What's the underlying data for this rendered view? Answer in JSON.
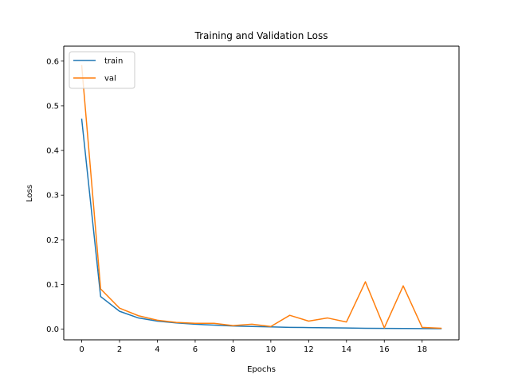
{
  "chart_data": {
    "type": "line",
    "title": "Training and Validation Loss",
    "xlabel": "Epochs",
    "ylabel": "Loss",
    "xlim": [
      -0.95,
      19.95
    ],
    "ylim": [
      -0.0239,
      0.6335
    ],
    "xticks": [
      0,
      2,
      4,
      6,
      8,
      10,
      12,
      14,
      16,
      18
    ],
    "yticks": [
      0.0,
      0.1,
      0.2,
      0.3,
      0.4,
      0.5,
      0.6
    ],
    "ytick_labels": [
      "0.0",
      "0.1",
      "0.2",
      "0.3",
      "0.4",
      "0.5",
      "0.6"
    ],
    "legend_position": "upper-left",
    "x": [
      0,
      1,
      2,
      3,
      4,
      5,
      6,
      7,
      8,
      9,
      10,
      11,
      12,
      13,
      14,
      15,
      16,
      17,
      18,
      19
    ],
    "series": [
      {
        "name": "train",
        "color": "#1f77b4",
        "values": [
          0.47,
          0.073,
          0.04,
          0.025,
          0.018,
          0.014,
          0.011,
          0.009,
          0.007,
          0.006,
          0.005,
          0.004,
          0.0035,
          0.003,
          0.0025,
          0.002,
          0.0018,
          0.0015,
          0.0012,
          0.001
        ]
      },
      {
        "name": "val",
        "color": "#ff7f0e",
        "values": [
          0.59,
          0.09,
          0.047,
          0.03,
          0.02,
          0.015,
          0.013,
          0.013,
          0.008,
          0.011,
          0.006,
          0.031,
          0.018,
          0.025,
          0.016,
          0.106,
          0.003,
          0.097,
          0.004,
          0.002
        ]
      }
    ]
  }
}
